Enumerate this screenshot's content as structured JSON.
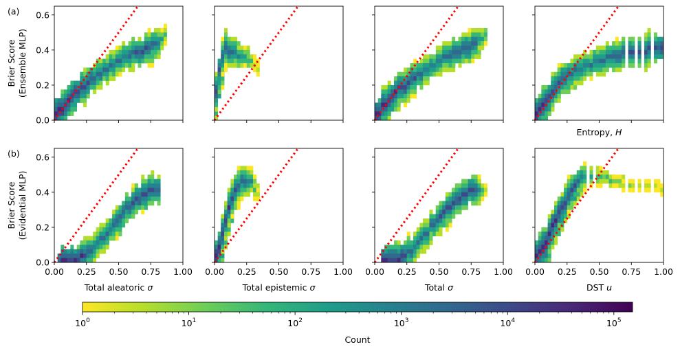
{
  "chart_data": {
    "type": "heatmap",
    "description_free": true,
    "ylim": [
      0,
      0.65
    ],
    "xlim": [
      0,
      1
    ],
    "x_ticks": [
      "0.00",
      "0.25",
      "0.50",
      "0.75",
      "1.00"
    ],
    "x_tick_values": [
      0,
      0.25,
      0.5,
      0.75,
      1.0
    ],
    "y_ticks": [
      "0.0",
      "0.2",
      "0.4",
      "0.6"
    ],
    "y_tick_values": [
      0,
      0.2,
      0.4,
      0.6
    ],
    "rows": [
      {
        "tag": "(a)",
        "ylabel_line1": "Brier Score",
        "ylabel_line2": "(Ensemble MLP)",
        "panels": [
          {
            "xlabel_prefix": "",
            "xlabel_var": "",
            "reference_line_slope": 1,
            "ridge": [
              [
                0.0,
                0.0
              ],
              [
                0.1,
                0.1
              ],
              [
                0.2,
                0.18
              ],
              [
                0.3,
                0.24
              ],
              [
                0.4,
                0.29
              ],
              [
                0.5,
                0.34
              ],
              [
                0.6,
                0.37
              ],
              [
                0.7,
                0.4
              ],
              [
                0.8,
                0.44
              ],
              [
                0.85,
                0.48
              ]
            ],
            "ridge_log": [
              5,
              4.6,
              4.3,
              3.9,
              3.5,
              3.3,
              3.7,
              4,
              3.6,
              2
            ]
          },
          {
            "xlabel_prefix": "",
            "xlabel_var": "",
            "reference_line_slope": 1,
            "ridge": [
              [
                0.0,
                0.0
              ],
              [
                0.02,
                0.15
              ],
              [
                0.05,
                0.3
              ],
              [
                0.1,
                0.4
              ],
              [
                0.2,
                0.37
              ],
              [
                0.3,
                0.33
              ],
              [
                0.35,
                0.3
              ]
            ],
            "ridge_log": [
              5,
              4.5,
              4.2,
              4,
              3,
              1.5,
              0.5
            ]
          },
          {
            "xlabel_prefix": "",
            "xlabel_var": "",
            "reference_line_slope": 1,
            "ridge": [
              [
                0.0,
                0.0
              ],
              [
                0.1,
                0.1
              ],
              [
                0.2,
                0.18
              ],
              [
                0.3,
                0.24
              ],
              [
                0.4,
                0.29
              ],
              [
                0.5,
                0.34
              ],
              [
                0.6,
                0.37
              ],
              [
                0.7,
                0.4
              ],
              [
                0.8,
                0.44
              ],
              [
                0.85,
                0.48
              ]
            ],
            "ridge_log": [
              5,
              4.6,
              4.3,
              3.9,
              3.5,
              3.3,
              3.7,
              4,
              3.6,
              2
            ]
          },
          {
            "xlabel_prefix": "Entropy, ",
            "xlabel_var": "H",
            "reference_line_slope": 1,
            "ridge": [
              [
                0.0,
                0.0
              ],
              [
                0.1,
                0.12
              ],
              [
                0.2,
                0.22
              ],
              [
                0.3,
                0.27
              ],
              [
                0.4,
                0.31
              ],
              [
                0.5,
                0.34
              ],
              [
                0.6,
                0.36
              ],
              [
                0.7,
                0.38
              ],
              [
                0.8,
                0.39
              ],
              [
                0.9,
                0.4
              ],
              [
                1.0,
                0.41
              ]
            ],
            "ridge_log": [
              5,
              4.5,
              4,
              3.6,
              3.3,
              3.5,
              3.7,
              3.9,
              4,
              4.1,
              4.2
            ]
          }
        ]
      },
      {
        "tag": "(b)",
        "ylabel_line1": "Brier Score",
        "ylabel_line2": "(Evidential MLP)",
        "panels": [
          {
            "xlabel_prefix": "Total aleatoric ",
            "xlabel_var": "σ",
            "reference_line_slope": 1,
            "ridge": [
              [
                0.05,
                0.0
              ],
              [
                0.2,
                0.02
              ],
              [
                0.3,
                0.08
              ],
              [
                0.4,
                0.16
              ],
              [
                0.5,
                0.25
              ],
              [
                0.6,
                0.33
              ],
              [
                0.7,
                0.39
              ],
              [
                0.8,
                0.42
              ]
            ],
            "ridge_log": [
              4.8,
              4.5,
              3.5,
              3.5,
              3.8,
              4,
              4.2,
              4
            ]
          },
          {
            "xlabel_prefix": "Total epistemic ",
            "xlabel_var": "σ",
            "reference_line_slope": 1,
            "ridge": [
              [
                0.0,
                0.0
              ],
              [
                0.05,
                0.1
              ],
              [
                0.1,
                0.25
              ],
              [
                0.15,
                0.38
              ],
              [
                0.2,
                0.45
              ],
              [
                0.25,
                0.47
              ],
              [
                0.3,
                0.45
              ],
              [
                0.35,
                0.38
              ]
            ],
            "ridge_log": [
              5,
              4.8,
              4.5,
              4.2,
              3.9,
              3.5,
              2.5,
              1
            ]
          },
          {
            "xlabel_prefix": "Total ",
            "xlabel_var": "σ",
            "reference_line_slope": 1,
            "ridge": [
              [
                0.05,
                0.0
              ],
              [
                0.2,
                0.02
              ],
              [
                0.3,
                0.08
              ],
              [
                0.4,
                0.16
              ],
              [
                0.5,
                0.25
              ],
              [
                0.6,
                0.33
              ],
              [
                0.7,
                0.39
              ],
              [
                0.8,
                0.42
              ],
              [
                0.85,
                0.4
              ]
            ],
            "ridge_log": [
              4.8,
              4.5,
              3.5,
              3.5,
              3.8,
              4,
              4.2,
              4,
              1
            ]
          },
          {
            "xlabel_prefix": "DST ",
            "xlabel_var": "u",
            "reference_line_slope": 1,
            "ridge": [
              [
                0.0,
                0.0
              ],
              [
                0.1,
                0.12
              ],
              [
                0.2,
                0.28
              ],
              [
                0.3,
                0.42
              ],
              [
                0.4,
                0.5
              ],
              [
                0.5,
                0.49
              ],
              [
                0.6,
                0.47
              ],
              [
                0.7,
                0.45
              ],
              [
                0.8,
                0.44
              ],
              [
                0.9,
                0.43
              ],
              [
                1.0,
                0.42
              ]
            ],
            "ridge_log": [
              5,
              4.8,
              4.5,
              4,
              3,
              2,
              1.5,
              1.2,
              1,
              0.8,
              0.7
            ]
          }
        ]
      }
    ],
    "colorbar": {
      "label": "Count",
      "scale": "log",
      "min": 1,
      "max": 150000,
      "ticks": [
        {
          "base": "10",
          "exp": "0",
          "value": 1
        },
        {
          "base": "10",
          "exp": "1",
          "value": 10
        },
        {
          "base": "10",
          "exp": "2",
          "value": 100
        },
        {
          "base": "10",
          "exp": "3",
          "value": 1000
        },
        {
          "base": "10",
          "exp": "4",
          "value": 10000
        },
        {
          "base": "10",
          "exp": "5",
          "value": 100000
        }
      ],
      "colormap": "viridis_r"
    },
    "colors": {
      "reference_line": "#ff0000",
      "viridis": [
        "#fde725",
        "#b5de2b",
        "#6ece58",
        "#35b779",
        "#1f9e89",
        "#26828e",
        "#31688e",
        "#3e4989",
        "#482878",
        "#440154"
      ]
    }
  }
}
